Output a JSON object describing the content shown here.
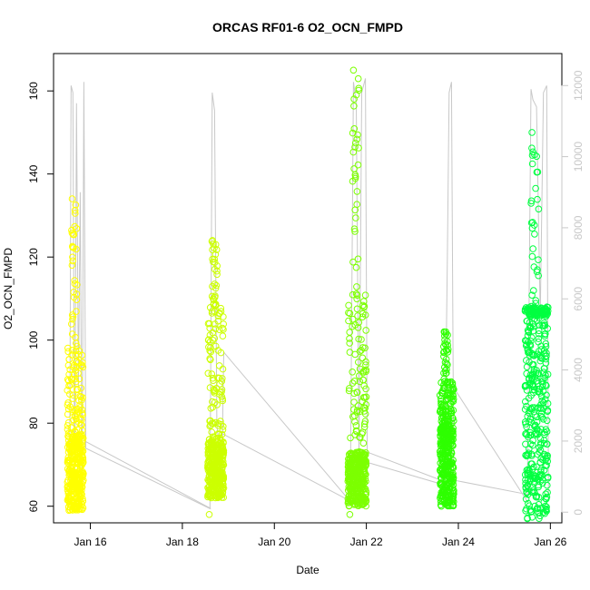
{
  "chart_data": {
    "type": "scatter",
    "title": "ORCAS RF01-6 O2_OCN_FMPD",
    "xlabel": "Date",
    "ylabel": "O2_OCN_FMPD",
    "x_ticks": [
      "Jan 16",
      "Jan 18",
      "Jan 20",
      "Jan 22",
      "Jan 24",
      "Jan 26"
    ],
    "x_tick_days": [
      16,
      18,
      20,
      22,
      24,
      26
    ],
    "xlim": [
      15.2,
      26.25
    ],
    "y_ticks": [
      60,
      80,
      100,
      120,
      140,
      160
    ],
    "ylim": [
      56,
      169
    ],
    "y2_ticks": [
      0,
      2000,
      4000,
      6000,
      8000,
      10000,
      12000
    ],
    "y2lim": [
      -300,
      12900
    ],
    "y2_color": "#c8c8c8",
    "grid": false,
    "legend": "none",
    "series": [
      {
        "x_range": [
          15.5,
          15.85
        ],
        "color": "#ffff00",
        "min": 59,
        "core": [
          59,
          77
        ],
        "spread_max": 100,
        "max": 134
      },
      {
        "x_range": [
          18.55,
          18.9
        ],
        "color": "#ccff00",
        "min": 58,
        "core": [
          62,
          76
        ],
        "spread_max": 108,
        "max": 124
      },
      {
        "x_range": [
          21.6,
          22.0
        ],
        "color": "#7cff00",
        "min": 58,
        "core": [
          60,
          73
        ],
        "spread_max": 112,
        "max": 165
      },
      {
        "x_range": [
          23.6,
          23.9
        ],
        "color": "#2eff00",
        "min": 60,
        "core": [
          60,
          80
        ],
        "spread_max": 90,
        "max": 102
      },
      {
        "x_range": [
          25.45,
          25.95
        ],
        "color": "#00ff40",
        "min": 57,
        "core": [
          57,
          106
        ],
        "spread_max": 108,
        "max": 150
      }
    ],
    "altitude_line": {
      "axis": "right",
      "color": "#c8c8c8",
      "points": [
        [
          15.55,
          500
        ],
        [
          15.58,
          12000
        ],
        [
          15.62,
          11800
        ],
        [
          15.66,
          800
        ],
        [
          15.7,
          11500
        ],
        [
          15.74,
          3500
        ],
        [
          15.78,
          9000
        ],
        [
          15.82,
          500
        ],
        [
          15.86,
          12100
        ],
        [
          15.9,
          1800
        ],
        [
          18.6,
          100
        ],
        [
          18.65,
          11800
        ],
        [
          18.7,
          11300
        ],
        [
          18.75,
          2500
        ],
        [
          18.8,
          1800
        ],
        [
          18.85,
          400
        ],
        [
          18.9,
          4500
        ],
        [
          21.65,
          300
        ],
        [
          21.72,
          12100
        ],
        [
          21.78,
          11500
        ],
        [
          21.84,
          1500
        ],
        [
          21.9,
          11800
        ],
        [
          21.98,
          12200
        ],
        [
          22.02,
          1400
        ],
        [
          23.6,
          800
        ],
        [
          23.7,
          1000
        ],
        [
          23.76,
          7000
        ],
        [
          23.8,
          11800
        ],
        [
          23.85,
          12100
        ],
        [
          23.9,
          900
        ],
        [
          25.5,
          500
        ],
        [
          25.58,
          11900
        ],
        [
          25.62,
          11600
        ],
        [
          25.7,
          11400
        ],
        [
          25.78,
          5500
        ],
        [
          25.85,
          11800
        ],
        [
          25.92,
          12000
        ],
        [
          25.96,
          300
        ]
      ],
      "connectors": [
        [
          [
            15.88,
            2000
          ],
          [
            18.62,
            100
          ]
        ],
        [
          [
            18.88,
            2200
          ],
          [
            21.67,
            300
          ]
        ],
        [
          [
            22.0,
            1700
          ],
          [
            23.62,
            900
          ]
        ],
        [
          [
            23.9,
            3500
          ],
          [
            25.5,
            300
          ]
        ]
      ]
    }
  }
}
